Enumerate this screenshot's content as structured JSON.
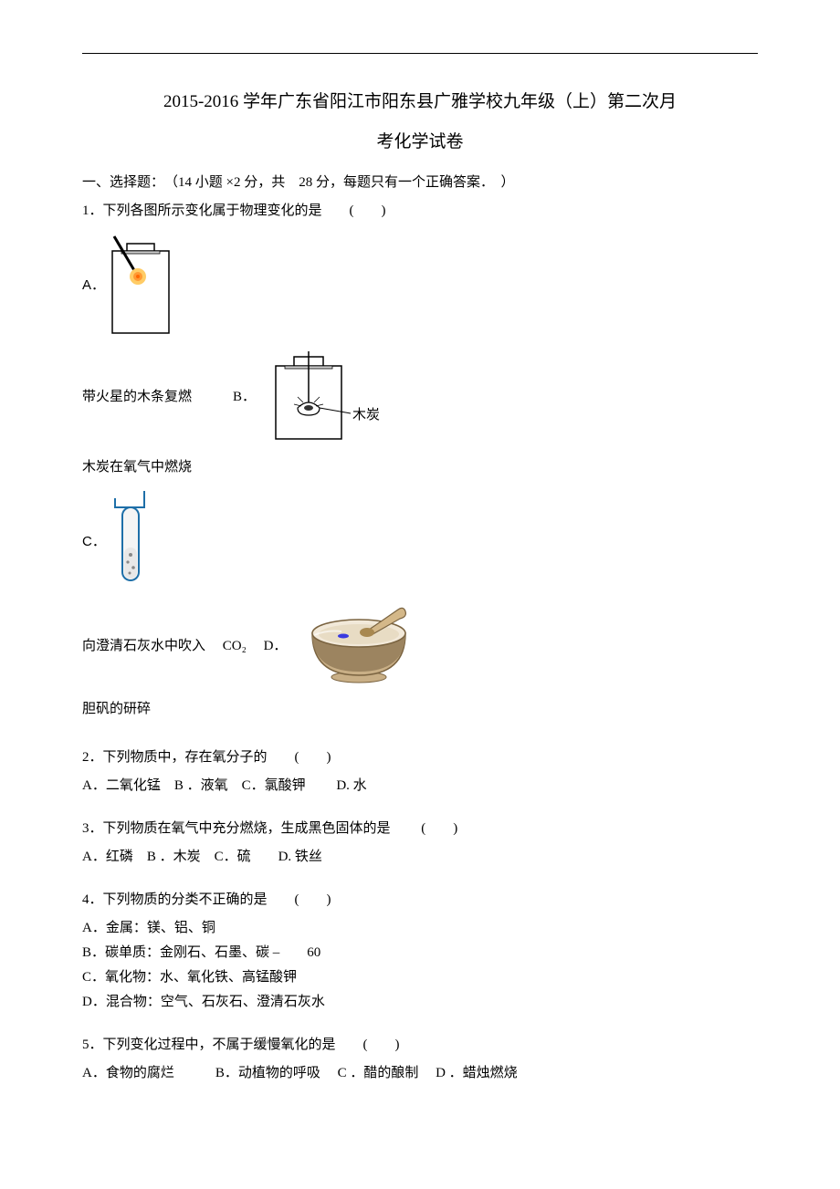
{
  "header_rule": true,
  "title": "2015-2016 学年广东省阳江市阳东县广雅学校九年级（上）第二次月",
  "subtitle": "考化学试卷",
  "section1": "一、选择题：　（14 小题 &#215;2 分，共　28 分，每题只有一个正确答案．　）",
  "q1": {
    "stem": "1．下列各图所示变化属于物理变化的是　　(　　)",
    "A": "A．",
    "A_desc_pre": "带火星的木条复燃　　　B．",
    "B_img_label": "木炭",
    "B_desc": "木炭在氧气中燃烧",
    "C": "C．",
    "C_desc_pre": "向澄清石灰水中吹入　 CO₂　 D．",
    "D_desc": "胆矾的研碎"
  },
  "q2": {
    "stem": "2．下列物质中，存在氧分子的　　(　　)",
    "opts": "A．二氧化锰　B ．液氧　C．氯酸钾　　 D.  水"
  },
  "q3": {
    "stem": "3．下列物质在氧气中充分燃烧，生成黑色固体的是　　 (　　)",
    "opts": "A．红磷　B ．木炭　C．硫　　D.  铁丝"
  },
  "q4": {
    "stem": "4．下列物质的分类不正确的是　　(　　)",
    "a": "A．金属：镁、铝、铜",
    "b": "B．碳单质：金刚石、石墨、碳 –　　60",
    "c": "C．氧化物：水、氧化铁、高锰酸钾",
    "d": "D．混合物：空气、石灰石、澄清石灰水"
  },
  "q5": {
    "stem": "5．下列变化过程中，不属于缓慢氧化的是　　(　　)",
    "opts": "A．食物的腐烂　　　B．动植物的呼吸　 C ．醋的酿制　 D ．蜡烛燃烧"
  },
  "svg": {
    "jar_stroke": "#000000",
    "jar_fill": "#ffffff",
    "glow_color": "#ff9933",
    "glow_center": "#ffcc66",
    "charcoal_fill": "#333333",
    "spoon_brown": "#8b6f3e",
    "tube_fill": "#e6e6e6",
    "tube_stroke": "#1e6fa8",
    "bubble": "#888888",
    "mortar_outer": "#c9af86",
    "mortar_inner": "#f2e9d9",
    "mortar_shadow": "#9c8460",
    "pestle": "#d4b889",
    "pestle_dark": "#a88850",
    "gem": "#3a3ae0"
  }
}
